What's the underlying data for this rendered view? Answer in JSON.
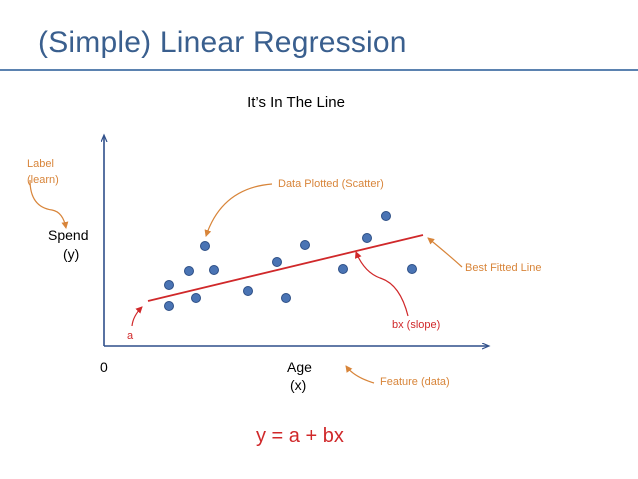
{
  "title": "(Simple) Linear Regression",
  "subtitle": "It’s In The Line",
  "labels": {
    "label_word": "Label",
    "learn": "(learn)",
    "spend": "Spend",
    "spend_y": "(y)",
    "origin": "0",
    "age": "Age",
    "age_x": "(x)",
    "feature": "Feature (data)",
    "scatter": "Data Plotted (Scatter)",
    "best_fit": "Best Fitted Line",
    "slope": "bx (slope)",
    "intercept": "a"
  },
  "formula": "y = a + bx",
  "colors": {
    "title": "#3a5f8e",
    "axis": "#2f4f8a",
    "point": "#4a74b4",
    "line": "#d0282a",
    "annotation": "#d8853a"
  }
}
